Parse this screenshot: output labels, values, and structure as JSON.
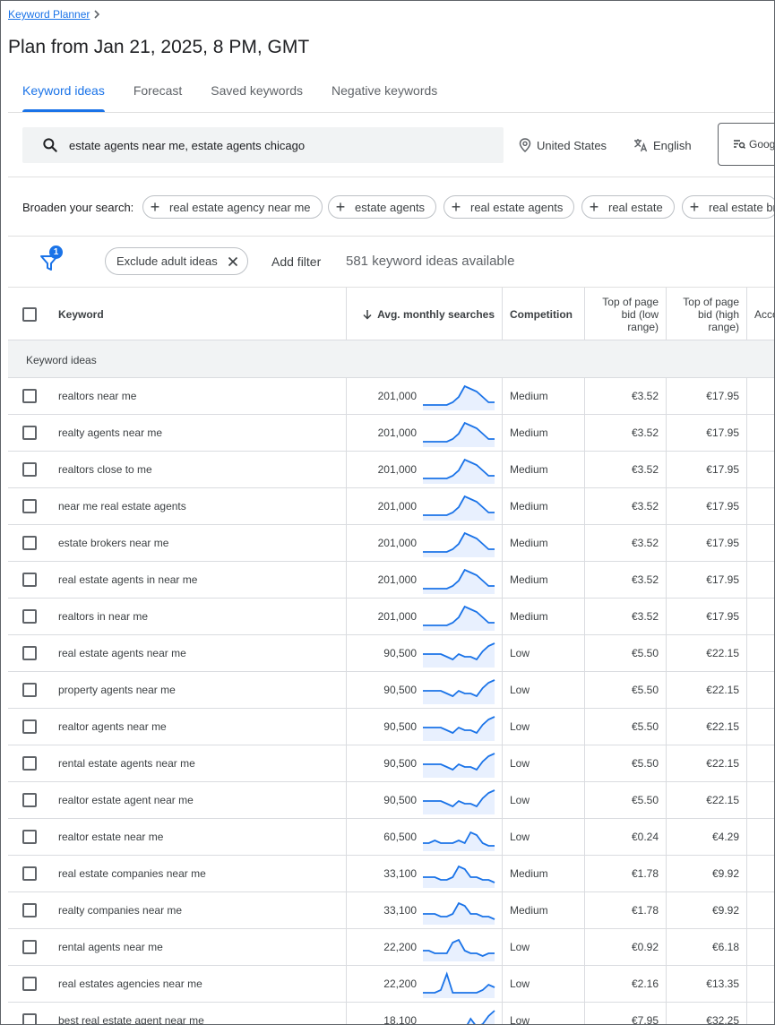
{
  "breadcrumb": {
    "label": "Keyword Planner"
  },
  "page": {
    "title": "Plan from Jan 21, 2025, 8 PM, GMT"
  },
  "tabs": [
    {
      "label": "Keyword ideas",
      "active": true
    },
    {
      "label": "Forecast",
      "active": false
    },
    {
      "label": "Saved keywords",
      "active": false
    },
    {
      "label": "Negative keywords",
      "active": false
    }
  ],
  "search": {
    "value": "estate agents near me, estate agents chicago",
    "location": "United States",
    "language": "English",
    "network": "Goog"
  },
  "broaden": {
    "label": "Broaden your search:",
    "chips": [
      "real estate agency near me",
      "estate agents",
      "real estate agents",
      "real estate",
      "real estate br"
    ]
  },
  "filters": {
    "badge_count": "1",
    "exclude_chip": "Exclude adult ideas",
    "add_filter": "Add filter",
    "available": "581 keyword ideas available"
  },
  "table": {
    "headers": {
      "keyword": "Keyword",
      "avg": "Avg. monthly searches",
      "competition": "Competition",
      "low_1": "Top of page",
      "low_2": "bid (low",
      "low_3": "range)",
      "high_1": "Top of page",
      "high_2": "bid (high",
      "high_3": "range)",
      "acc": "Acco"
    },
    "section_label": "Keyword ideas",
    "accent_color": "#1a73e8",
    "rows": [
      {
        "keyword": "realtors near me",
        "avg": "201,000",
        "competition": "Medium",
        "low": "€3.52",
        "high": "€17.95",
        "trend": [
          2,
          2,
          2,
          2,
          2,
          3,
          5,
          9,
          8,
          7,
          5,
          3,
          3
        ]
      },
      {
        "keyword": "realty agents near me",
        "avg": "201,000",
        "competition": "Medium",
        "low": "€3.52",
        "high": "€17.95",
        "trend": [
          2,
          2,
          2,
          2,
          2,
          3,
          5,
          9,
          8,
          7,
          5,
          3,
          3
        ]
      },
      {
        "keyword": "realtors close to me",
        "avg": "201,000",
        "competition": "Medium",
        "low": "€3.52",
        "high": "€17.95",
        "trend": [
          2,
          2,
          2,
          2,
          2,
          3,
          5,
          9,
          8,
          7,
          5,
          3,
          3
        ]
      },
      {
        "keyword": "near me real estate agents",
        "avg": "201,000",
        "competition": "Medium",
        "low": "€3.52",
        "high": "€17.95",
        "trend": [
          2,
          2,
          2,
          2,
          2,
          3,
          5,
          9,
          8,
          7,
          5,
          3,
          3
        ]
      },
      {
        "keyword": "estate brokers near me",
        "avg": "201,000",
        "competition": "Medium",
        "low": "€3.52",
        "high": "€17.95",
        "trend": [
          2,
          2,
          2,
          2,
          2,
          3,
          5,
          9,
          8,
          7,
          5,
          3,
          3
        ]
      },
      {
        "keyword": "real estate agents in near me",
        "avg": "201,000",
        "competition": "Medium",
        "low": "€3.52",
        "high": "€17.95",
        "trend": [
          2,
          2,
          2,
          2,
          2,
          3,
          5,
          9,
          8,
          7,
          5,
          3,
          3
        ]
      },
      {
        "keyword": "realtors in near me",
        "avg": "201,000",
        "competition": "Medium",
        "low": "€3.52",
        "high": "€17.95",
        "trend": [
          2,
          2,
          2,
          2,
          2,
          3,
          5,
          9,
          8,
          7,
          5,
          3,
          3
        ]
      },
      {
        "keyword": "real estate agents near me",
        "avg": "90,500",
        "competition": "Low",
        "low": "€5.50",
        "high": "€22.15",
        "trend": [
          5,
          5,
          5,
          5,
          4,
          3,
          5,
          4,
          4,
          3,
          6,
          8,
          9
        ]
      },
      {
        "keyword": "property agents near me",
        "avg": "90,500",
        "competition": "Low",
        "low": "€5.50",
        "high": "€22.15",
        "trend": [
          5,
          5,
          5,
          5,
          4,
          3,
          5,
          4,
          4,
          3,
          6,
          8,
          9
        ]
      },
      {
        "keyword": "realtor agents near me",
        "avg": "90,500",
        "competition": "Low",
        "low": "€5.50",
        "high": "€22.15",
        "trend": [
          5,
          5,
          5,
          5,
          4,
          3,
          5,
          4,
          4,
          3,
          6,
          8,
          9
        ]
      },
      {
        "keyword": "rental estate agents near me",
        "avg": "90,500",
        "competition": "Low",
        "low": "€5.50",
        "high": "€22.15",
        "trend": [
          5,
          5,
          5,
          5,
          4,
          3,
          5,
          4,
          4,
          3,
          6,
          8,
          9
        ]
      },
      {
        "keyword": "realtor estate agent near me",
        "avg": "90,500",
        "competition": "Low",
        "low": "€5.50",
        "high": "€22.15",
        "trend": [
          5,
          5,
          5,
          5,
          4,
          3,
          5,
          4,
          4,
          3,
          6,
          8,
          9
        ]
      },
      {
        "keyword": "realtor estate near me",
        "avg": "60,500",
        "competition": "Low",
        "low": "€0.24",
        "high": "€4.29",
        "trend": [
          3,
          3,
          4,
          3,
          3,
          3,
          4,
          3,
          7,
          6,
          3,
          2,
          2
        ]
      },
      {
        "keyword": "real estate companies near me",
        "avg": "33,100",
        "competition": "Medium",
        "low": "€1.78",
        "high": "€9.92",
        "trend": [
          4,
          4,
          4,
          3,
          3,
          4,
          8,
          7,
          4,
          4,
          3,
          3,
          2
        ]
      },
      {
        "keyword": "realty companies near me",
        "avg": "33,100",
        "competition": "Medium",
        "low": "€1.78",
        "high": "€9.92",
        "trend": [
          4,
          4,
          4,
          3,
          3,
          4,
          8,
          7,
          4,
          4,
          3,
          3,
          2
        ]
      },
      {
        "keyword": "rental agents near me",
        "avg": "22,200",
        "competition": "Low",
        "low": "€0.92",
        "high": "€6.18",
        "trend": [
          4,
          4,
          3,
          3,
          3,
          7,
          8,
          4,
          3,
          3,
          2,
          3,
          3
        ]
      },
      {
        "keyword": "real estates agencies near me",
        "avg": "22,200",
        "competition": "Low",
        "low": "€2.16",
        "high": "€13.35",
        "trend": [
          2,
          2,
          2,
          3,
          9,
          2,
          2,
          2,
          2,
          2,
          3,
          5,
          4
        ]
      },
      {
        "keyword": "best real estate agent near me",
        "avg": "18,100",
        "competition": "Low",
        "low": "€7.95",
        "high": "€32.25",
        "trend": [
          2,
          2,
          2,
          2,
          2,
          2,
          2,
          2,
          6,
          3,
          4,
          7,
          9
        ]
      }
    ]
  }
}
